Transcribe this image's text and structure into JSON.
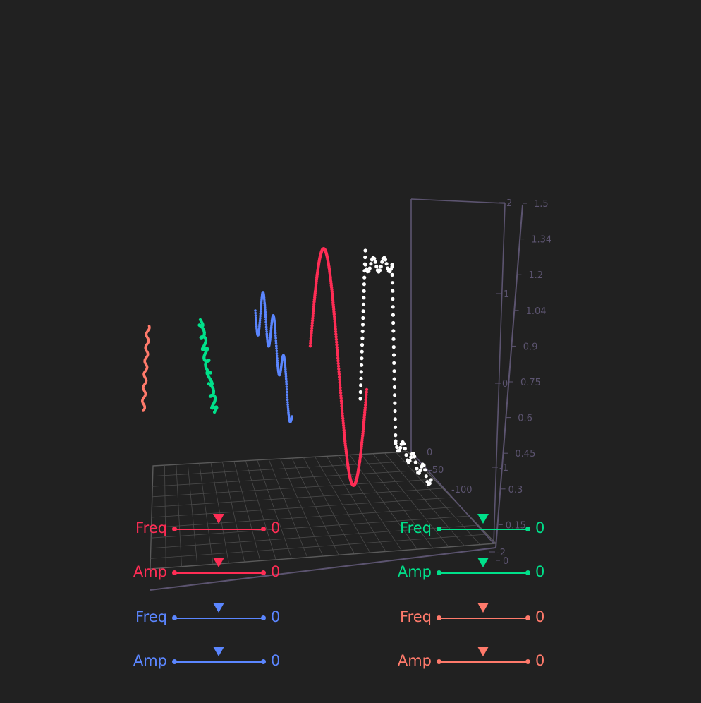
{
  "colors": {
    "background": "#212121",
    "axis": "#5c5470",
    "grid": "#4a4a4a",
    "red": "#ff2d55",
    "green": "#00e08a",
    "blue": "#5b86ff",
    "salmon": "#ff7a6b",
    "white": "#ffffff"
  },
  "axis": {
    "right_scale_ticks": [
      "1.5",
      "1.34",
      "1.2",
      "1.04",
      "0.9",
      "0.75",
      "0.6",
      "0.45",
      "0.3",
      "0.15",
      "0"
    ],
    "vertical_ticks": [
      "2",
      "1",
      "0",
      "-1",
      "-2"
    ],
    "floor_ticks": [
      "0",
      "-50",
      "-100"
    ]
  },
  "sliders": [
    {
      "label": "Freq",
      "value": "0",
      "color": "#ff2d55",
      "id": "red-freq"
    },
    {
      "label": "Amp",
      "value": "0",
      "color": "#ff2d55",
      "id": "red-amp"
    },
    {
      "label": "Freq",
      "value": "0",
      "color": "#5b86ff",
      "id": "blue-freq"
    },
    {
      "label": "Amp",
      "value": "0",
      "color": "#5b86ff",
      "id": "blue-amp"
    },
    {
      "label": "Freq",
      "value": "0",
      "color": "#00e08a",
      "id": "green-freq"
    },
    {
      "label": "Amp",
      "value": "0",
      "color": "#00e08a",
      "id": "green-amp"
    },
    {
      "label": "Freq",
      "value": "0",
      "color": "#ff7a6b",
      "id": "salmon-freq"
    },
    {
      "label": "Amp",
      "value": "0",
      "color": "#ff7a6b",
      "id": "salmon-amp"
    }
  ]
}
